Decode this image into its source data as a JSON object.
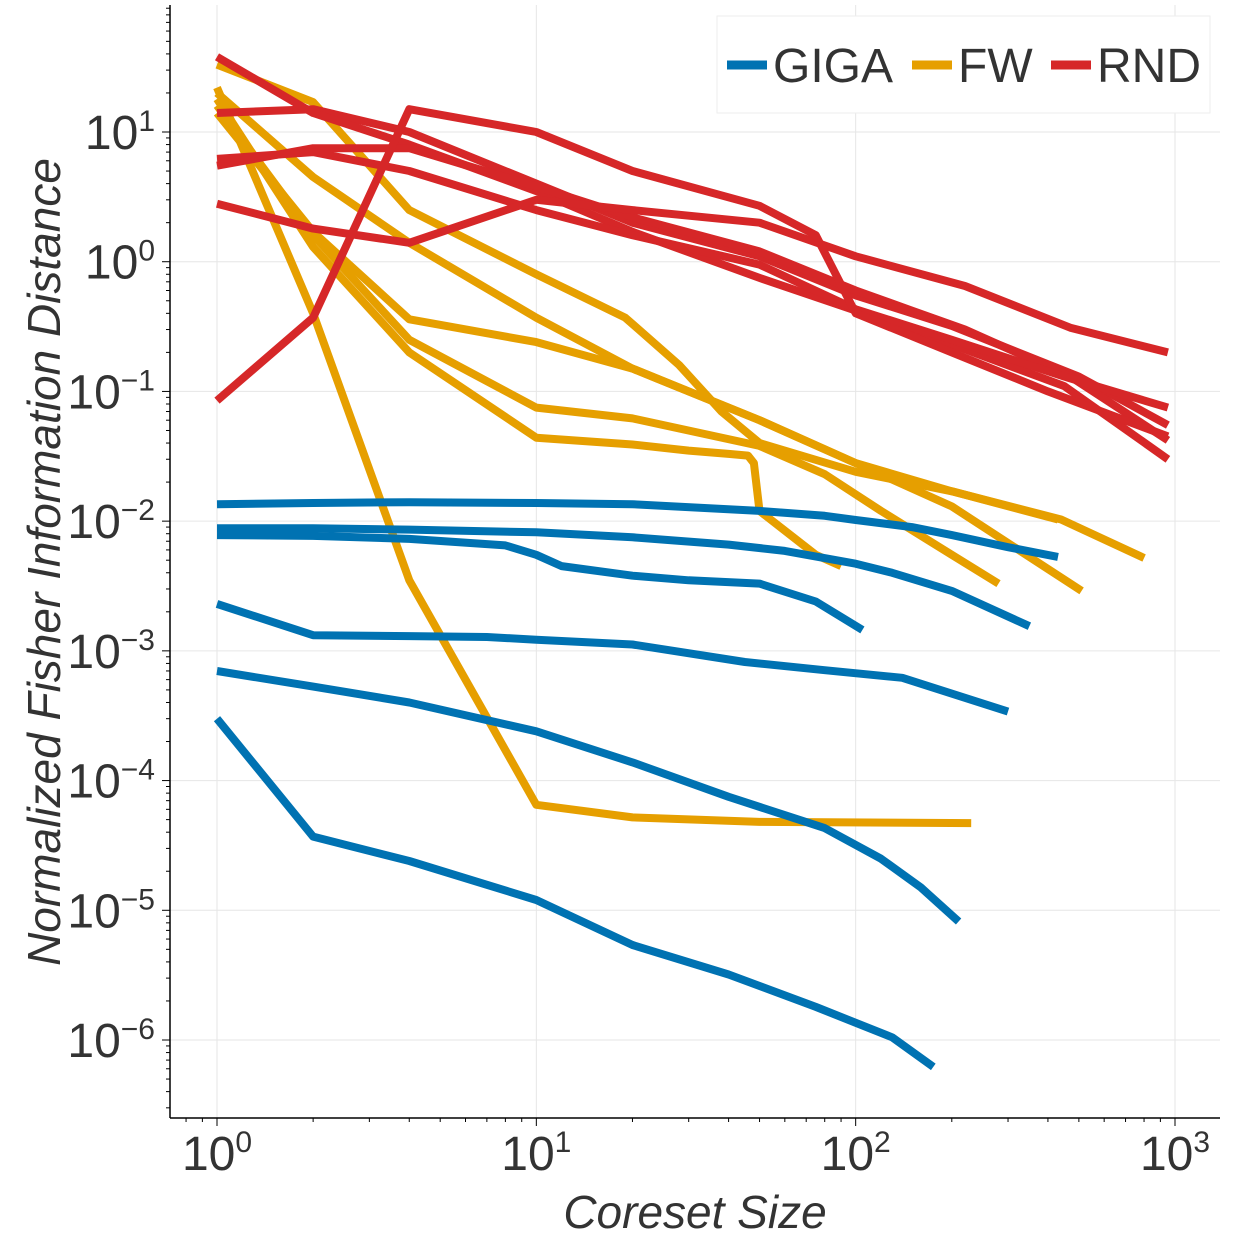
{
  "chart_data": {
    "type": "line",
    "title": "",
    "xlabel": "Coreset Size",
    "ylabel": "Normalized Fisher Information Distance",
    "xscale": "log",
    "yscale": "log",
    "xlim": [
      0.7,
      1000
    ],
    "ylim": [
      1.3e-07,
      100.0
    ],
    "grid": true,
    "legend_position": "top-right",
    "x_ticks": [
      {
        "value": 1,
        "base": "10",
        "exp": "0"
      },
      {
        "value": 10,
        "base": "10",
        "exp": "1"
      },
      {
        "value": 100,
        "base": "10",
        "exp": "2"
      },
      {
        "value": 1000,
        "base": "10",
        "exp": "3"
      }
    ],
    "y_ticks": [
      {
        "value": 10,
        "base": "10",
        "exp": "1"
      },
      {
        "value": 1,
        "base": "10",
        "exp": "0"
      },
      {
        "value": 0.1,
        "base": "10",
        "exp": "−1"
      },
      {
        "value": 0.01,
        "base": "10",
        "exp": "−2"
      },
      {
        "value": 0.001,
        "base": "10",
        "exp": "−3"
      },
      {
        "value": 0.0001,
        "base": "10",
        "exp": "−4"
      },
      {
        "value": 1e-05,
        "base": "10",
        "exp": "−5"
      },
      {
        "value": 1e-06,
        "base": "10",
        "exp": "−6"
      }
    ],
    "series": [
      {
        "name": "FW",
        "color": "#E69F00",
        "x": [
          1,
          2,
          4,
          10,
          20,
          30,
          40,
          46,
          48,
          50,
          75,
          90
        ],
        "y": [
          18,
          1.3,
          0.2,
          0.044,
          0.039,
          0.035,
          0.033,
          0.032,
          0.028,
          0.012,
          0.0055,
          0.0045
        ]
      },
      {
        "name": "FW",
        "color": "#E69F00",
        "x": [
          1,
          2,
          4,
          10,
          20,
          50,
          100,
          200,
          430
        ],
        "y": [
          20,
          4.5,
          1.4,
          0.37,
          0.15,
          0.06,
          0.028,
          0.017,
          0.0103
        ]
      },
      {
        "name": "FW",
        "color": "#E69F00",
        "x": [
          1,
          2,
          4,
          10,
          20,
          50,
          80,
          120,
          200,
          280
        ],
        "y": [
          16,
          1.6,
          0.25,
          0.075,
          0.062,
          0.038,
          0.023,
          0.012,
          0.0055,
          0.0033
        ]
      },
      {
        "name": "FW",
        "color": "#E69F00",
        "x": [
          1,
          2,
          4,
          10,
          20,
          50,
          100,
          200,
          510
        ],
        "y": [
          14,
          1.7,
          0.36,
          0.24,
          0.15,
          0.06,
          0.028,
          0.013,
          0.0029
        ]
      },
      {
        "name": "FW",
        "color": "#E69F00",
        "x": [
          1,
          2,
          4,
          10,
          19,
          28,
          38,
          50,
          100,
          200,
          440,
          800
        ],
        "y": [
          33,
          17,
          2.5,
          0.8,
          0.37,
          0.16,
          0.07,
          0.04,
          0.024,
          0.017,
          0.0103,
          0.0052
        ]
      },
      {
        "name": "FW",
        "color": "#E69F00",
        "x": [
          1,
          2,
          4,
          10,
          20,
          50,
          230
        ],
        "y": [
          22,
          0.4,
          0.0035,
          6.5e-05,
          5.2e-05,
          4.8e-05,
          4.7e-05
        ]
      },
      {
        "name": "GIGA",
        "color": "#0072B2",
        "x": [
          1,
          2,
          4,
          10,
          20,
          50,
          80,
          100,
          150,
          200,
          300,
          430
        ],
        "y": [
          0.0135,
          0.0138,
          0.014,
          0.0138,
          0.0135,
          0.012,
          0.011,
          0.0102,
          0.009,
          0.0078,
          0.0063,
          0.0053
        ]
      },
      {
        "name": "GIGA",
        "color": "#0072B2",
        "x": [
          1,
          2,
          4,
          10,
          20,
          40,
          60,
          100,
          130,
          200,
          350
        ],
        "y": [
          0.0088,
          0.0088,
          0.0086,
          0.0082,
          0.0075,
          0.0066,
          0.0059,
          0.0047,
          0.004,
          0.0029,
          0.00155
        ]
      },
      {
        "name": "GIGA",
        "color": "#0072B2",
        "x": [
          1,
          2,
          4,
          8,
          10,
          12,
          20,
          30,
          50,
          75,
          105
        ],
        "y": [
          0.0078,
          0.0077,
          0.0073,
          0.0065,
          0.0055,
          0.0045,
          0.0038,
          0.0035,
          0.0033,
          0.0024,
          0.00145
        ]
      },
      {
        "name": "GIGA",
        "color": "#0072B2",
        "x": [
          1,
          2,
          4,
          7,
          10,
          20,
          45,
          80,
          140,
          300
        ],
        "y": [
          0.0023,
          0.00132,
          0.0013,
          0.00128,
          0.00122,
          0.00112,
          0.00082,
          0.00071,
          0.00062,
          0.00034
        ]
      },
      {
        "name": "GIGA",
        "color": "#0072B2",
        "x": [
          1,
          2,
          4,
          10,
          20,
          40,
          80,
          120,
          160,
          210
        ],
        "y": [
          0.0007,
          0.00053,
          0.0004,
          0.00024,
          0.000138,
          7.5e-05,
          4.3e-05,
          2.5e-05,
          1.5e-05,
          8.2e-06
        ]
      },
      {
        "name": "GIGA",
        "color": "#0072B2",
        "x": [
          1,
          2,
          4,
          10,
          20,
          40,
          75,
          130,
          175
        ],
        "y": [
          0.0003,
          3.7e-05,
          2.4e-05,
          1.2e-05,
          5.4e-06,
          3.2e-06,
          1.8e-06,
          1.05e-06,
          6.2e-07
        ]
      },
      {
        "name": "RND",
        "color": "#D62728",
        "x": [
          1,
          2,
          4,
          10,
          20,
          50,
          100,
          200,
          500,
          950
        ],
        "y": [
          14,
          15,
          10,
          4,
          2,
          1.1,
          0.55,
          0.32,
          0.13,
          0.055
        ]
      },
      {
        "name": "RND",
        "color": "#D62728",
        "x": [
          1,
          2,
          4,
          10,
          20,
          50,
          100,
          200,
          450,
          950
        ],
        "y": [
          38,
          14,
          8,
          3.5,
          1.7,
          0.75,
          0.42,
          0.23,
          0.11,
          0.03
        ]
      },
      {
        "name": "RND",
        "color": "#D62728",
        "x": [
          1,
          2,
          4,
          10,
          20,
          50,
          100,
          150,
          220,
          470,
          950
        ],
        "y": [
          5.5,
          7.5,
          7.5,
          3.8,
          2.2,
          1.2,
          0.6,
          0.42,
          0.3,
          0.13,
          0.042
        ]
      },
      {
        "name": "RND",
        "color": "#D62728",
        "x": [
          1,
          2,
          4,
          10,
          20,
          50,
          100,
          200,
          450,
          950
        ],
        "y": [
          6.2,
          7,
          5,
          2.5,
          1.6,
          0.95,
          0.43,
          0.25,
          0.13,
          0.075
        ]
      },
      {
        "name": "RND",
        "color": "#D62728",
        "x": [
          1,
          2,
          4,
          10,
          20,
          50,
          100,
          220,
          470,
          950
        ],
        "y": [
          2.8,
          1.8,
          1.4,
          3,
          2.5,
          2,
          1.1,
          0.65,
          0.31,
          0.2
        ]
      },
      {
        "name": "RND",
        "color": "#D62728",
        "x": [
          1,
          2,
          4,
          10,
          20,
          50,
          75,
          100,
          200,
          400,
          950
        ],
        "y": [
          0.085,
          0.37,
          15,
          10,
          5,
          2.7,
          1.6,
          0.4,
          0.2,
          0.1,
          0.045
        ]
      }
    ],
    "legend": [
      {
        "label": "GIGA",
        "color": "#0072B2"
      },
      {
        "label": "FW",
        "color": "#E69F00"
      },
      {
        "label": "RND",
        "color": "#D62728"
      }
    ]
  }
}
